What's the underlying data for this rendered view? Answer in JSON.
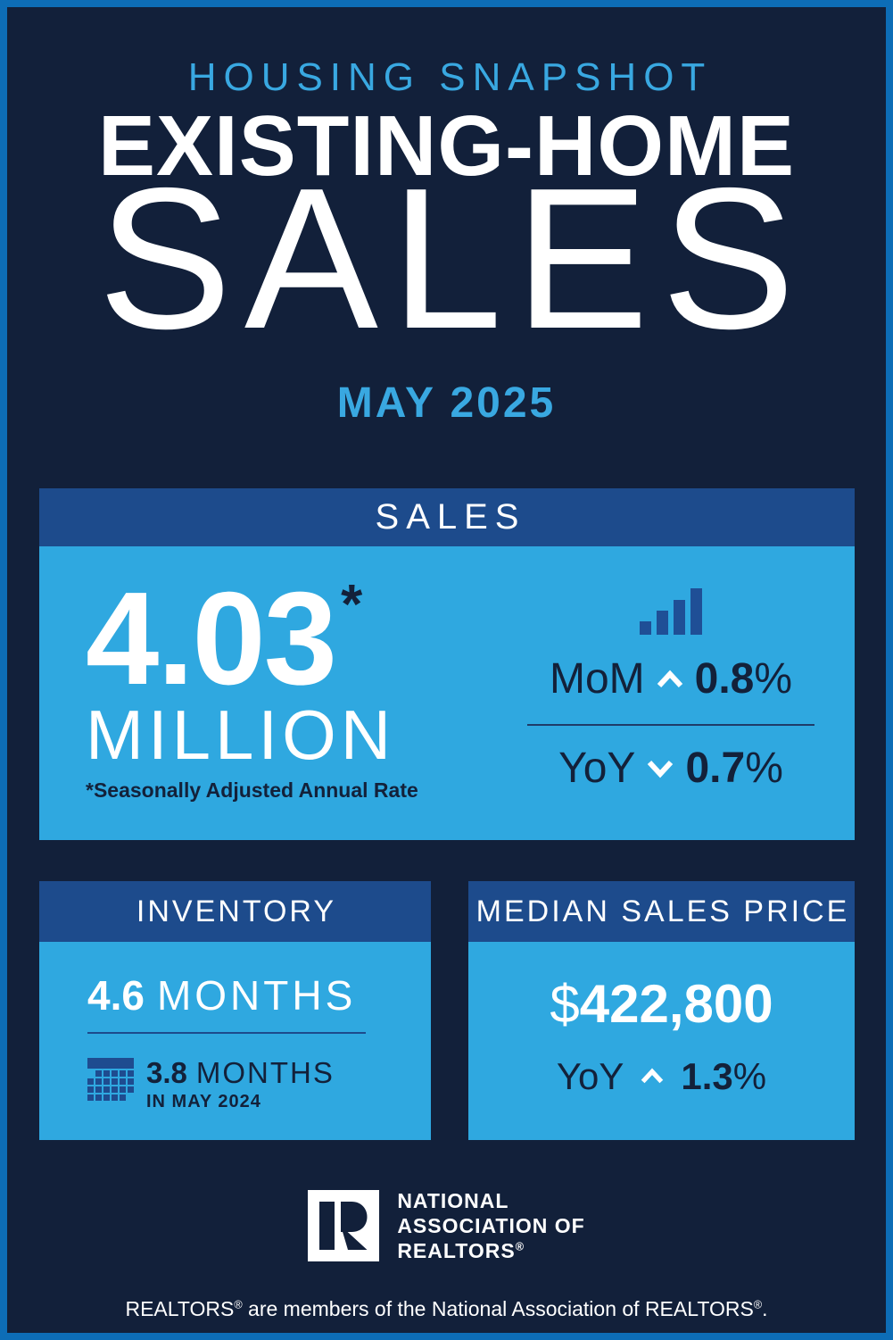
{
  "page": {
    "eyebrow": "HOUSING SNAPSHOT",
    "title": "EXISTING-HOME",
    "title_big": "SALES",
    "period": "MAY 2025",
    "footer": "REALTORS® are members of the National Association of REALTORS®."
  },
  "sales": {
    "header": "SALES",
    "value": "4.03",
    "asterisk": "*",
    "unit": "MILLION",
    "footnote": "*Seasonally Adjusted Annual Rate",
    "mom_label": "MoM",
    "mom_direction": "up",
    "mom_value": "0.8",
    "mom_percent": "%",
    "yoy_label": "YoY",
    "yoy_direction": "down",
    "yoy_value": "0.7",
    "yoy_percent": "%"
  },
  "inventory": {
    "header": "INVENTORY",
    "value": "4.6",
    "unit": "MONTHS",
    "prev_value": "3.8",
    "prev_unit": "MONTHS",
    "prev_period": "IN MAY 2024"
  },
  "median": {
    "header": "MEDIAN SALES PRICE",
    "currency": "$",
    "value": "422,800",
    "yoy_label": "YoY",
    "yoy_direction": "up",
    "yoy_value": "1.3",
    "yoy_percent": "%"
  },
  "logo": {
    "line1": "NATIONAL",
    "line2": "ASSOCIATION OF",
    "line3": "REALTORS®"
  },
  "icons": {
    "sales_trend": "bar-chart-icon",
    "month_over_month": "caret-up-icon",
    "year_over_year": "chevron-down-icon",
    "inventory": "calendar-icon",
    "brand": "nar-block-r-icon"
  },
  "colors": {
    "frame_blue": "#0d6db6",
    "background_navy": "#12203a",
    "panel_blue": "#2fa8e0",
    "header_bar_blue": "#1d4b8c",
    "icon_blue": "#1f4f96",
    "accent_text_blue": "#39a8e1",
    "dark_navy_text": "#13213a",
    "white": "#ffffff"
  }
}
